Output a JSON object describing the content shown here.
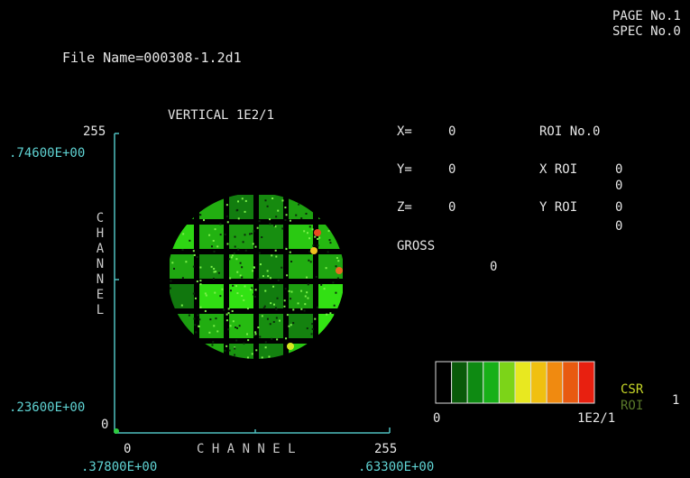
{
  "header": {
    "page_label": "PAGE No.1",
    "spec_label": "SPEC No.0",
    "file_name": "File Name=000308-1.2d1"
  },
  "plot": {
    "title": "VERTICAL 1E2/1",
    "y_axis": {
      "max_channel": "255",
      "min_channel": "0",
      "max_value": ".74600E+00",
      "min_value": ".23600E+00",
      "label_letters": [
        "C",
        "H",
        "A",
        "N",
        "N",
        "E",
        "L"
      ]
    },
    "x_axis": {
      "min_channel": "0",
      "max_channel": "255",
      "min_value": ".37800E+00",
      "max_value": ".63300E+00",
      "label": "C H A N N E L"
    }
  },
  "readout": {
    "x_label": "X=",
    "x_value": "0",
    "y_label": "Y=",
    "y_value": "0",
    "z_label": "Z=",
    "z_value": "0",
    "gross_label": "GROSS",
    "gross_value": "0",
    "roi_no": "ROI No.0",
    "x_roi_label": "X ROI",
    "x_roi_values": [
      "0",
      "0"
    ],
    "y_roi_label": "Y ROI",
    "y_roi_values": [
      "0",
      "0"
    ]
  },
  "scale": {
    "min_label": "0",
    "max_label": "1E2/1",
    "colors": [
      "#000000",
      "#0a5a0a",
      "#0e8a12",
      "#18b018",
      "#7cd418",
      "#e8e820",
      "#f0c010",
      "#f08a10",
      "#e85a10",
      "#e82010"
    ]
  },
  "legend": {
    "csr_label": "CSR",
    "csr_color": "#c8d828",
    "roi_label": "ROI",
    "roi_color": "#5a7a2a",
    "counter": "1"
  },
  "colors": {
    "axis": "#4fc0c0",
    "image_green": "#3cd21e"
  }
}
